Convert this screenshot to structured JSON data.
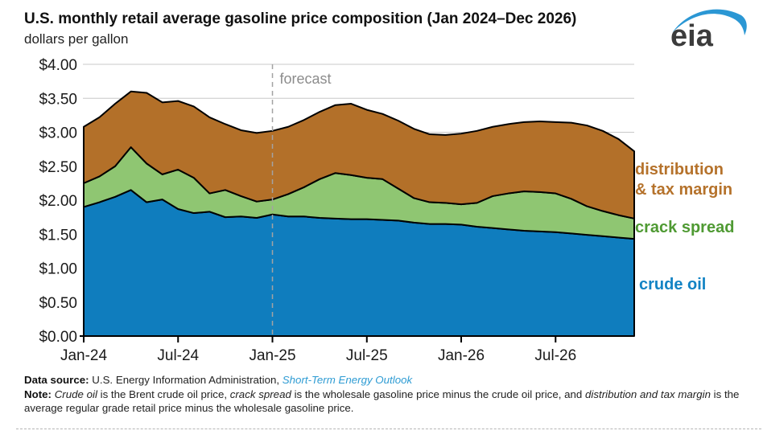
{
  "header": {
    "title": "U.S. monthly retail average gasoline price composition (Jan 2024–Dec 2026)",
    "subtitle": "dollars per gallon",
    "logo_text": "eia",
    "logo_swoosh_color": "#2b97d4",
    "logo_text_color": "#3c3c3c"
  },
  "chart_data": {
    "type": "area",
    "stacked": true,
    "title": "U.S. monthly retail average gasoline price composition (Jan 2024–Dec 2026)",
    "ylabel": "dollars per gallon",
    "ylim": [
      0,
      4
    ],
    "grid": "horizontal",
    "legend_position": "right",
    "forecast_label": "forecast",
    "forecast_start_index": 12,
    "x": [
      "Jan-24",
      "Feb-24",
      "Mar-24",
      "Apr-24",
      "May-24",
      "Jun-24",
      "Jul-24",
      "Aug-24",
      "Sep-24",
      "Oct-24",
      "Nov-24",
      "Dec-24",
      "Jan-25",
      "Feb-25",
      "Mar-25",
      "Apr-25",
      "May-25",
      "Jun-25",
      "Jul-25",
      "Aug-25",
      "Sep-25",
      "Oct-25",
      "Nov-25",
      "Dec-25",
      "Jan-26",
      "Feb-26",
      "Mar-26",
      "Apr-26",
      "May-26",
      "Jun-26",
      "Jul-26",
      "Aug-26",
      "Sep-26",
      "Oct-26",
      "Nov-26",
      "Dec-26"
    ],
    "x_tick_labels": [
      "Jan-24",
      "Jul-24",
      "Jan-25",
      "Jul-25",
      "Jan-26",
      "Jul-26"
    ],
    "x_tick_indices": [
      0,
      6,
      12,
      18,
      24,
      30
    ],
    "y_ticks": [
      {
        "label": "$0.00",
        "value": 0
      },
      {
        "label": "$0.50",
        "value": 0.5
      },
      {
        "label": "$1.00",
        "value": 1
      },
      {
        "label": "$1.50",
        "value": 1.5
      },
      {
        "label": "$2.00",
        "value": 2
      },
      {
        "label": "$2.50",
        "value": 2.5
      },
      {
        "label": "$3.00",
        "value": 3
      },
      {
        "label": "$3.50",
        "value": 3.5
      },
      {
        "label": "$4.00",
        "value": 4
      }
    ],
    "series": [
      {
        "name": "crude oil",
        "color": "#0f7dbe",
        "values": [
          1.9,
          1.97,
          2.05,
          2.15,
          1.97,
          2.01,
          1.87,
          1.81,
          1.83,
          1.75,
          1.76,
          1.74,
          1.79,
          1.76,
          1.76,
          1.74,
          1.73,
          1.72,
          1.72,
          1.71,
          1.7,
          1.67,
          1.65,
          1.65,
          1.64,
          1.61,
          1.59,
          1.57,
          1.55,
          1.54,
          1.53,
          1.51,
          1.49,
          1.47,
          1.45,
          1.43
        ]
      },
      {
        "name": "crack spread",
        "color": "#8fc672",
        "values": [
          0.35,
          0.38,
          0.45,
          0.63,
          0.57,
          0.37,
          0.58,
          0.52,
          0.27,
          0.4,
          0.3,
          0.24,
          0.22,
          0.33,
          0.43,
          0.57,
          0.67,
          0.65,
          0.61,
          0.6,
          0.47,
          0.36,
          0.32,
          0.31,
          0.3,
          0.35,
          0.47,
          0.53,
          0.58,
          0.58,
          0.57,
          0.51,
          0.42,
          0.37,
          0.33,
          0.3
        ]
      },
      {
        "name": "distribution & tax margin",
        "color": "#b37029",
        "values": [
          0.83,
          0.87,
          0.92,
          0.82,
          1.04,
          1.06,
          1.01,
          1.05,
          1.12,
          0.97,
          0.97,
          1.01,
          1.01,
          0.99,
          0.99,
          0.99,
          1.0,
          1.05,
          1.0,
          0.96,
          1.0,
          1.02,
          1.0,
          1.0,
          1.04,
          1.06,
          1.02,
          1.02,
          1.02,
          1.04,
          1.05,
          1.12,
          1.19,
          1.18,
          1.12,
          0.99
        ]
      }
    ],
    "style": {
      "grid_color": "#c8c8c8",
      "axis_color": "#000000",
      "area_stroke": "#000000",
      "forecast_line_color": "#a3a3a3"
    }
  },
  "legend": {
    "distribution_line1": "distribution",
    "distribution_line2": "& tax margin",
    "crack": "crack spread",
    "crude": "crude oil",
    "colors": {
      "distribution": "#b5722b",
      "crack": "#4f9a33",
      "crude": "#1283c4"
    }
  },
  "footer": {
    "data_source_label": "Data source:",
    "data_source_text": "U.S. Energy Information Administration,",
    "data_source_link": "Short-Term Energy Outlook",
    "note_label": "Note:",
    "note_italic1": "Crude oil",
    "note_text1": "is the Brent crude oil price,",
    "note_italic2": "crack spread",
    "note_text2": "is the wholesale gasoline price minus the crude oil price, and",
    "note_italic3": "distribution and tax margin",
    "note_text3": "is the average regular grade retail price minus the wholesale gasoline price."
  }
}
